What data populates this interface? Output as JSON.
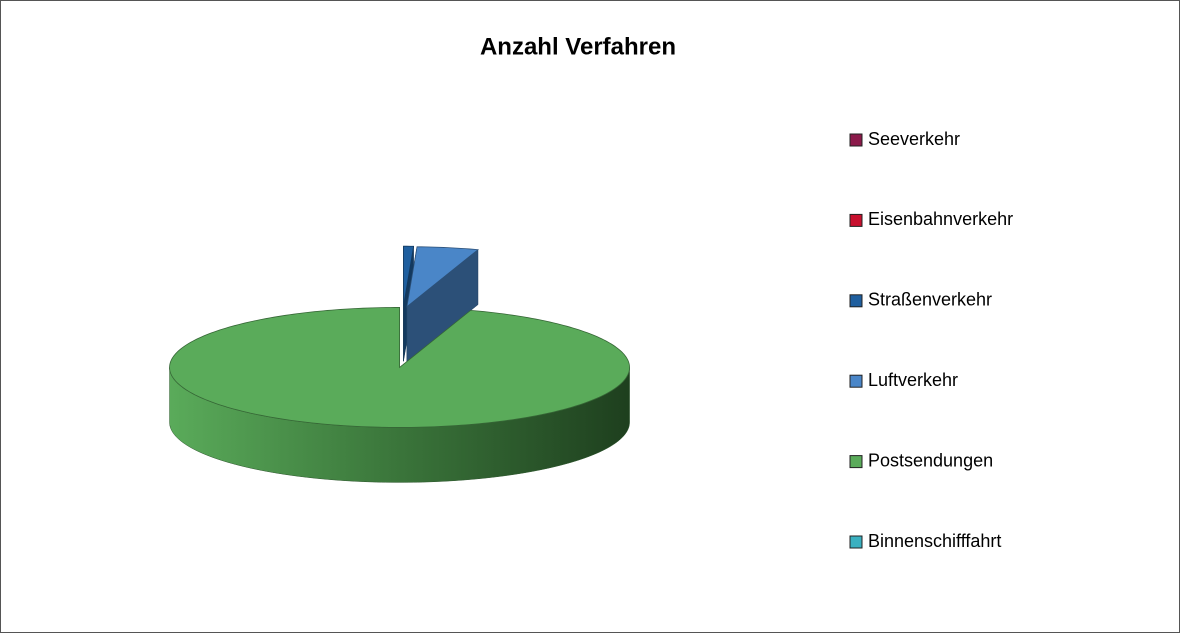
{
  "chart_data": {
    "type": "pie",
    "title": "Anzahl Verfahren",
    "categories": [
      "Seeverkehr",
      "Eisenbahnverkehr",
      "Straßenverkehr",
      "Luftverkehr",
      "Postsendungen",
      "Binnenschifffahrt"
    ],
    "values": [
      0,
      0,
      0.7,
      4.3,
      95,
      0
    ],
    "colors": [
      "#8b1a4a",
      "#c8102e",
      "#1f5f9f",
      "#4a86c8",
      "#5aab5a",
      "#3ab0c0"
    ],
    "legend": "right"
  }
}
